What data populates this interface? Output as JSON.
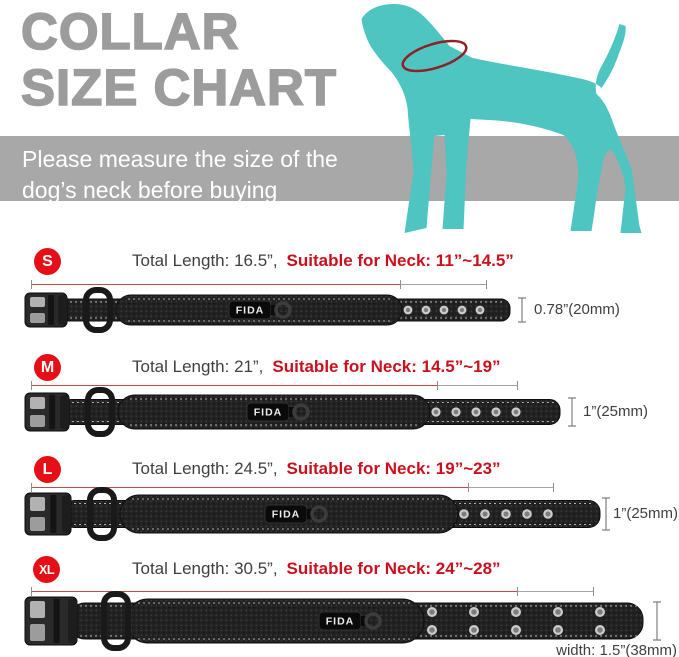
{
  "title": {
    "line1": "COLLAR",
    "line2": "SIZE CHART"
  },
  "banner": {
    "line1": "Please measure the size of the",
    "line2": "dog’s neck before buying"
  },
  "brand": "FIDA",
  "colors": {
    "teal": "#4ec5c1",
    "neck_ring_red": "#8d2127",
    "badge_red": "#e60f17",
    "text_red": "#cc0f1d",
    "title_gray": "#9c9c9c",
    "banner_gray": "#a8a8a8",
    "dark_text": "#3f3f3f"
  },
  "rows": [
    {
      "size": "S",
      "total_length": "Total Length: 16.5”,",
      "neck": "Suitable for Neck: 11”~14.5”",
      "width_label": "0.78”(20mm)"
    },
    {
      "size": "M",
      "total_length": "Total Length: 21”,",
      "neck": "Suitable for Neck: 14.5”~19”",
      "width_label": "1”(25mm)"
    },
    {
      "size": "L",
      "total_length": "Total Length: 24.5”,",
      "neck": "Suitable for Neck: 19”~23”",
      "width_label": "1”(25mm)"
    },
    {
      "size": "XL",
      "total_length": "Total Length: 30.5”,",
      "neck": "Suitable for Neck: 24”~28”",
      "width_label": "width: 1.5”(38mm)"
    }
  ]
}
